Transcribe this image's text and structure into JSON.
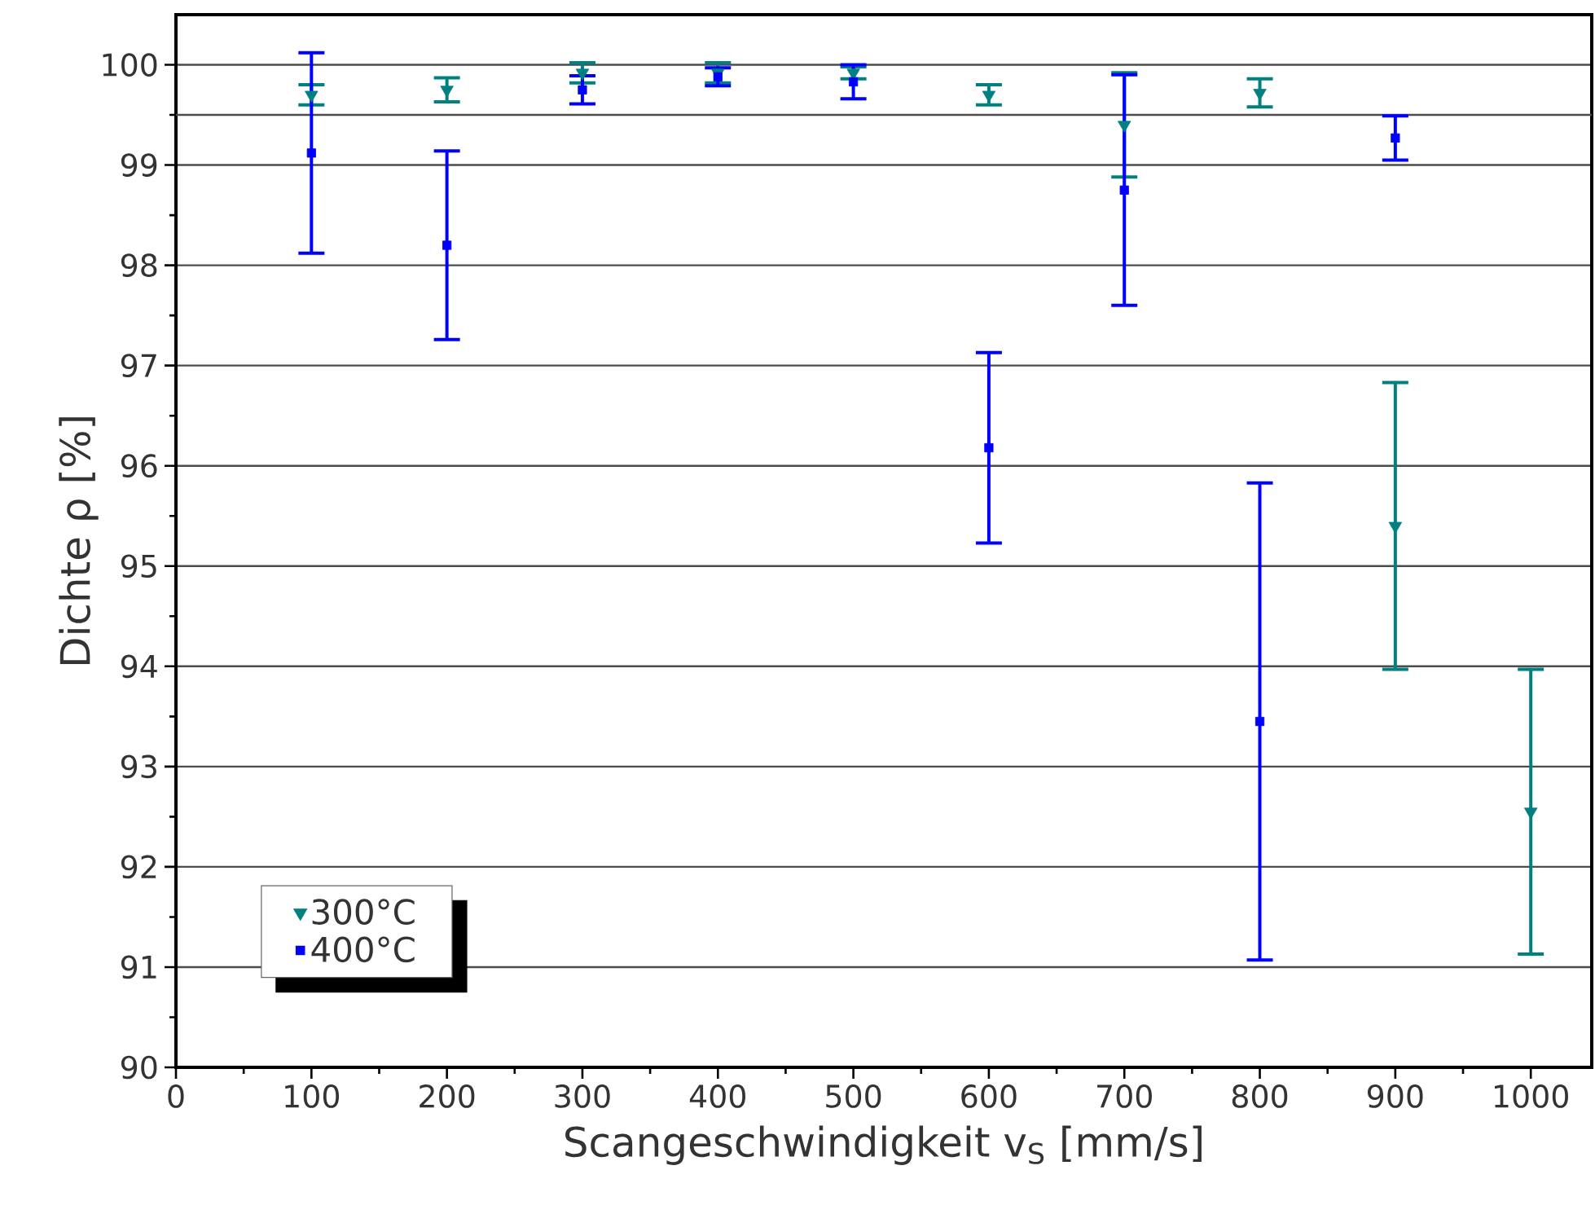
{
  "chart_data": {
    "type": "scatter",
    "xlabel": "Scangeschwindigkeit v$_{S}$ [mm/s]",
    "ylabel": "Dichte ρ [%]",
    "x": [
      100,
      200,
      300,
      400,
      500,
      600,
      700,
      800,
      900,
      1000
    ],
    "xlim": [
      0,
      1045
    ],
    "xticks": [
      0,
      100,
      200,
      300,
      400,
      500,
      600,
      700,
      800,
      900,
      1000
    ],
    "ylim": [
      90,
      100.5
    ],
    "yticks": [
      90,
      91,
      92,
      93,
      94,
      95,
      96,
      97,
      98,
      99,
      100
    ],
    "grid": "y",
    "legend": "bottom left",
    "ref_lines": [
      {
        "axis": "y",
        "value": 99.5
      }
    ],
    "series": [
      {
        "name": "300°C",
        "color": "#008080",
        "marker": "triangle",
        "values": [
          99.7,
          99.75,
          99.92,
          99.92,
          99.92,
          99.7,
          99.4,
          99.72,
          95.4,
          92.55
        ],
        "errors": [
          0.1,
          0.12,
          0.1,
          0.1,
          0.06,
          0.1,
          0.52,
          0.14,
          1.43,
          1.42
        ]
      },
      {
        "name": "400°C",
        "color": "#0000ff",
        "marker": "square",
        "values": [
          99.12,
          98.2,
          99.75,
          99.88,
          99.83,
          96.18,
          98.75,
          93.45,
          99.27,
          null
        ],
        "errors": [
          1.0,
          0.94,
          0.14,
          0.09,
          0.17,
          0.95,
          1.15,
          2.38,
          0.22,
          null
        ]
      }
    ]
  }
}
